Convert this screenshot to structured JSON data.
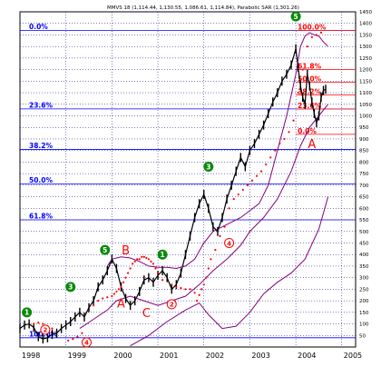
{
  "chart_data": {
    "type": "line",
    "title": "MMVS 18 (1,114.44, 1,130.55, 1,086.61, 1,114.84), Parabolic SAR (1,301.26)",
    "xlabel": "",
    "ylabel": "",
    "x_range": [
      1998.0,
      2005.3
    ],
    "ylim": [
      0,
      1450
    ],
    "y_ticks": [
      50,
      100,
      150,
      200,
      250,
      300,
      350,
      400,
      450,
      500,
      550,
      600,
      650,
      700,
      750,
      800,
      850,
      900,
      950,
      1000,
      1050,
      1100,
      1150,
      1200,
      1250,
      1300,
      1350,
      1400,
      1450
    ],
    "x_ticks": [
      {
        "x": 1998,
        "label": "1998"
      },
      {
        "x": 1999,
        "label": "1999"
      },
      {
        "x": 2000,
        "label": "2000"
      },
      {
        "x": 2001,
        "label": "2001"
      },
      {
        "x": 2002,
        "label": "2002"
      },
      {
        "x": 2003,
        "label": "2003"
      },
      {
        "x": 2004,
        "label": "2004"
      },
      {
        "x": 2005,
        "label": "2005"
      }
    ],
    "grid": true,
    "series": [
      {
        "role": "price",
        "color": "#000000",
        "x": [
          1998.0,
          1998.1,
          1998.2,
          1998.3,
          1998.4,
          1998.5,
          1998.6,
          1998.7,
          1998.8,
          1998.9,
          1999.0,
          1999.1,
          1999.2,
          1999.3,
          1999.4,
          1999.5,
          1999.6,
          1999.7,
          1999.8,
          1999.9,
          2000.0,
          2000.1,
          2000.2,
          2000.3,
          2000.4,
          2000.5,
          2000.6,
          2000.7,
          2000.8,
          2000.9,
          2001.0,
          2001.1,
          2001.2,
          2001.3,
          2001.4,
          2001.5,
          2001.6,
          2001.7,
          2001.8,
          2001.9,
          2002.0,
          2002.1,
          2002.2,
          2002.3,
          2002.4,
          2002.5,
          2002.6,
          2002.7,
          2002.8,
          2002.9,
          2003.0,
          2003.1,
          2003.2,
          2003.3,
          2003.4,
          2003.5,
          2003.6,
          2003.7,
          2003.8,
          2003.9,
          2004.0,
          2004.05,
          2004.1,
          2004.15,
          2004.2,
          2004.25,
          2004.3,
          2004.35,
          2004.4,
          2004.45,
          2004.5,
          2004.55,
          2004.6,
          2004.65
        ],
        "values": [
          80,
          95,
          100,
          85,
          45,
          35,
          40,
          55,
          60,
          80,
          95,
          110,
          130,
          150,
          130,
          170,
          200,
          260,
          290,
          330,
          380,
          340,
          260,
          210,
          180,
          200,
          240,
          290,
          300,
          280,
          310,
          330,
          300,
          250,
          270,
          320,
          400,
          480,
          560,
          620,
          660,
          600,
          520,
          500,
          560,
          640,
          700,
          760,
          820,
          780,
          850,
          880,
          920,
          960,
          1010,
          1060,
          1100,
          1150,
          1180,
          1220,
          1290,
          1210,
          1130,
          1080,
          1050,
          1180,
          1130,
          1060,
          1010,
          970,
          1000,
          1080,
          1110,
          1115
        ]
      },
      {
        "role": "upper-envelope",
        "color": "#800080",
        "x": [
          1999.9,
          2000.0,
          2000.2,
          2000.4,
          2000.6,
          2000.8,
          2001.0,
          2001.2,
          2001.4,
          2001.6,
          2001.8,
          2002.0,
          2002.2,
          2002.4,
          2002.6,
          2002.8,
          2003.0,
          2003.2,
          2003.4,
          2003.6,
          2003.8,
          2004.0,
          2004.1,
          2004.2,
          2004.3,
          2004.4,
          2004.5,
          2004.6,
          2004.7
        ],
        "values": [
          350,
          380,
          390,
          385,
          370,
          350,
          345,
          345,
          340,
          350,
          380,
          450,
          500,
          520,
          540,
          560,
          590,
          620,
          700,
          850,
          1000,
          1180,
          1300,
          1345,
          1360,
          1350,
          1345,
          1320,
          1300
        ]
      },
      {
        "role": "middle-envelope",
        "color": "#800080",
        "x": [
          1999.3,
          1999.6,
          1999.9,
          2000.1,
          2000.4,
          2000.7,
          2001.0,
          2001.3,
          2001.6,
          2001.9,
          2002.2,
          2002.5,
          2002.8,
          2003.0,
          2003.3,
          2003.6,
          2003.9,
          2004.1,
          2004.3,
          2004.5,
          2004.7
        ],
        "values": [
          80,
          120,
          160,
          200,
          220,
          200,
          180,
          200,
          220,
          270,
          330,
          380,
          440,
          500,
          560,
          640,
          760,
          870,
          950,
          1000,
          1050
        ]
      },
      {
        "role": "lower-envelope",
        "color": "#800080",
        "x": [
          2000.4,
          2000.8,
          2001.2,
          2001.6,
          2001.9,
          2002.1,
          2002.4,
          2002.7,
          2003.0,
          2003.3,
          2003.6,
          2003.9,
          2004.2,
          2004.5,
          2004.7
        ],
        "values": [
          5,
          50,
          110,
          160,
          190,
          140,
          80,
          90,
          150,
          230,
          280,
          320,
          380,
          510,
          650
        ]
      }
    ],
    "parabolic_sar": {
      "color": "#ff0000",
      "x": [
        1998.3,
        1998.4,
        1998.5,
        1998.6,
        1998.7,
        1999.05,
        1999.15,
        1999.25,
        1999.35,
        1999.6,
        1999.7,
        1999.8,
        1999.9,
        2000.0,
        2000.05,
        2000.1,
        2000.15,
        2000.2,
        2000.25,
        2000.3,
        2000.35,
        2000.4,
        2000.45,
        2000.5,
        2000.55,
        2000.6,
        2000.65,
        2000.7,
        2000.75,
        2000.8,
        2000.85,
        2000.9,
        2000.95,
        2001.0,
        2001.1,
        2001.3,
        2001.4,
        2001.5,
        2001.6,
        2001.7,
        2001.8,
        2001.85,
        2001.9,
        2001.95,
        2002.0,
        2002.05,
        2002.1,
        2002.15,
        2002.25,
        2002.35,
        2002.45,
        2002.55,
        2002.65,
        2002.75,
        2002.85,
        2002.95,
        2003.05,
        2003.15,
        2003.25,
        2003.35,
        2003.45,
        2003.55,
        2003.65,
        2003.75,
        2003.85,
        2003.95,
        2004.05,
        2004.15,
        2004.25,
        2004.35,
        2004.45,
        2004.55
      ],
      "values": [
        100,
        105,
        100,
        90,
        80,
        28,
        35,
        45,
        60,
        180,
        200,
        210,
        215,
        220,
        230,
        240,
        250,
        260,
        280,
        300,
        320,
        340,
        360,
        370,
        380,
        380,
        390,
        390,
        385,
        380,
        370,
        360,
        340,
        320,
        290,
        270,
        260,
        255,
        250,
        250,
        235,
        200,
        225,
        250,
        270,
        300,
        340,
        380,
        420,
        480,
        520,
        600,
        640,
        660,
        680,
        700,
        720,
        740,
        760,
        790,
        820,
        850,
        880,
        900,
        930,
        980,
        1100,
        1200,
        1300,
        1340,
        1350,
        1360
      ]
    },
    "fibonacci_levels": [
      {
        "label": "0.0%",
        "value": 1370,
        "color": "#0000ff"
      },
      {
        "label": "23.6%",
        "value": 1030,
        "color": "#0000ff"
      },
      {
        "label": "38.2%",
        "value": 855,
        "color": "#0000ff"
      },
      {
        "label": "50.0%",
        "value": 705,
        "color": "#0000ff"
      },
      {
        "label": "61.8%",
        "value": 550,
        "color": "#0000ff"
      },
      {
        "label": "100.0%",
        "value": 40,
        "color": "#0000ff"
      },
      {
        "label": "100.0%",
        "value": 1370,
        "color": "#ff0000",
        "x_start": 2004.0
      },
      {
        "label": "61.8%",
        "value": 1200,
        "color": "#ff0000",
        "x_start": 2004.0
      },
      {
        "label": "50.0%",
        "value": 1145,
        "color": "#ff0000",
        "x_start": 2004.0
      },
      {
        "label": "38.2%",
        "value": 1090,
        "color": "#ff0000",
        "x_start": 2004.0
      },
      {
        "label": "23.6%",
        "value": 1030,
        "color": "#ff0000",
        "x_start": 2004.0
      },
      {
        "label": "0.0%",
        "value": 920,
        "color": "#ff0000",
        "x_start": 2004.0
      }
    ],
    "wave_labels": [
      {
        "label": "1",
        "x": 1998.15,
        "y": 150,
        "style": "green-circle"
      },
      {
        "label": "2",
        "x": 1998.55,
        "y": 75,
        "style": "red-circle"
      },
      {
        "label": "3",
        "x": 1999.1,
        "y": 260,
        "style": "green-circle"
      },
      {
        "label": "4",
        "x": 1999.45,
        "y": 20,
        "style": "red-circle"
      },
      {
        "label": "5",
        "x": 1999.85,
        "y": 420,
        "style": "green-circle"
      },
      {
        "label": "B",
        "x": 2000.3,
        "y": 420,
        "style": "red-letter"
      },
      {
        "label": "A",
        "x": 2000.2,
        "y": 190,
        "style": "red-letter"
      },
      {
        "label": "C",
        "x": 2000.75,
        "y": 150,
        "style": "red-letter"
      },
      {
        "label": "1",
        "x": 2001.1,
        "y": 400,
        "style": "green-circle"
      },
      {
        "label": "2",
        "x": 2001.3,
        "y": 185,
        "style": "red-circle"
      },
      {
        "label": "3",
        "x": 2002.1,
        "y": 780,
        "style": "green-circle"
      },
      {
        "label": "4",
        "x": 2002.55,
        "y": 450,
        "style": "red-circle"
      },
      {
        "label": "5",
        "x": 2004.0,
        "y": 1430,
        "style": "green-circle"
      },
      {
        "label": "A",
        "x": 2004.35,
        "y": 880,
        "style": "red-letter"
      }
    ],
    "colors": {
      "green": "#0a8a0a",
      "red": "#ff0000",
      "blue": "#0000ff",
      "purple": "#800080",
      "grid": "#000080"
    }
  }
}
